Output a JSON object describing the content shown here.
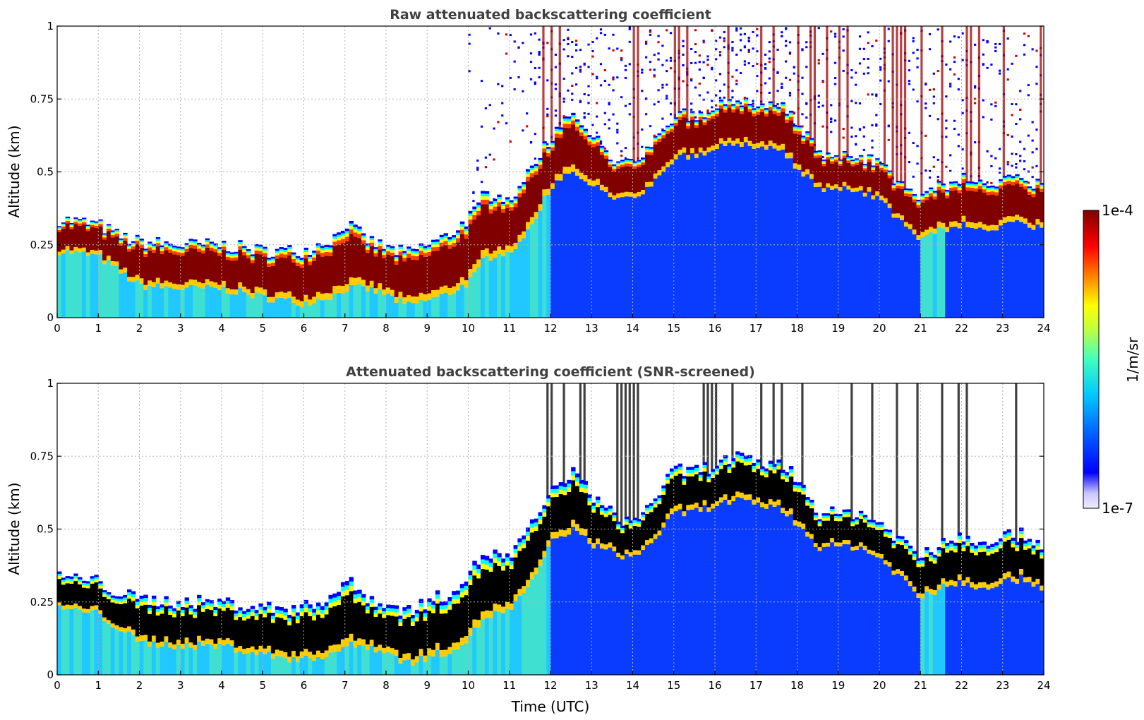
{
  "chart_data": [
    {
      "type": "heatmap",
      "title": "Raw attenuated backscattering coefficient",
      "xlabel": "",
      "ylabel": "Altitude (km)",
      "xlim": [
        0,
        24
      ],
      "ylim": [
        0,
        1
      ],
      "x_ticks": [
        "0",
        "1",
        "2",
        "3",
        "4",
        "5",
        "6",
        "7",
        "8",
        "9",
        "10",
        "11",
        "12",
        "13",
        "14",
        "15",
        "16",
        "17",
        "18",
        "19",
        "20",
        "21",
        "22",
        "23",
        "24"
      ],
      "y_ticks": [
        "0",
        "0.25",
        "0.5",
        "0.75",
        "1"
      ],
      "grid": true,
      "layer_top_km": [
        [
          0,
          0.34
        ],
        [
          0.5,
          0.33
        ],
        [
          1,
          0.32
        ],
        [
          1.5,
          0.28
        ],
        [
          2,
          0.26
        ],
        [
          3,
          0.25
        ],
        [
          4,
          0.25
        ],
        [
          5,
          0.23
        ],
        [
          6,
          0.23
        ],
        [
          6.8,
          0.28
        ],
        [
          7,
          0.33
        ],
        [
          7.5,
          0.27
        ],
        [
          8,
          0.24
        ],
        [
          8.5,
          0.22
        ],
        [
          9,
          0.25
        ],
        [
          9.5,
          0.28
        ],
        [
          10,
          0.34
        ],
        [
          10.4,
          0.42
        ],
        [
          11,
          0.4
        ],
        [
          11.5,
          0.5
        ],
        [
          12,
          0.62
        ],
        [
          12.5,
          0.7
        ],
        [
          13,
          0.62
        ],
        [
          13.5,
          0.55
        ],
        [
          14,
          0.52
        ],
        [
          14.5,
          0.6
        ],
        [
          15,
          0.7
        ],
        [
          15.5,
          0.7
        ],
        [
          16,
          0.72
        ],
        [
          16.5,
          0.75
        ],
        [
          17,
          0.72
        ],
        [
          17.5,
          0.73
        ],
        [
          18,
          0.68
        ],
        [
          18.5,
          0.56
        ],
        [
          19,
          0.55
        ],
        [
          19.5,
          0.56
        ],
        [
          20,
          0.52
        ],
        [
          20.5,
          0.47
        ],
        [
          21,
          0.4
        ],
        [
          21.5,
          0.45
        ],
        [
          22,
          0.48
        ],
        [
          22.5,
          0.46
        ],
        [
          23,
          0.48
        ],
        [
          23.5,
          0.48
        ],
        [
          24,
          0.45
        ]
      ],
      "layer_base_km": [
        [
          0,
          0.23
        ],
        [
          0.5,
          0.22
        ],
        [
          1,
          0.21
        ],
        [
          1.5,
          0.16
        ],
        [
          2,
          0.11
        ],
        [
          3,
          0.1
        ],
        [
          4,
          0.1
        ],
        [
          5,
          0.07
        ],
        [
          6,
          0.05
        ],
        [
          6.8,
          0.08
        ],
        [
          7,
          0.1
        ],
        [
          7.5,
          0.1
        ],
        [
          8,
          0.08
        ],
        [
          8.5,
          0.04
        ],
        [
          9,
          0.06
        ],
        [
          9.5,
          0.08
        ],
        [
          10,
          0.12
        ],
        [
          10.4,
          0.2
        ],
        [
          11,
          0.22
        ],
        [
          11.5,
          0.3
        ],
        [
          12,
          0.45
        ],
        [
          12.5,
          0.5
        ],
        [
          13,
          0.45
        ],
        [
          13.5,
          0.42
        ],
        [
          14,
          0.4
        ],
        [
          14.5,
          0.46
        ],
        [
          15,
          0.55
        ],
        [
          15.5,
          0.56
        ],
        [
          16,
          0.58
        ],
        [
          16.5,
          0.6
        ],
        [
          17,
          0.58
        ],
        [
          17.5,
          0.58
        ],
        [
          18,
          0.52
        ],
        [
          18.5,
          0.44
        ],
        [
          19,
          0.44
        ],
        [
          19.5,
          0.44
        ],
        [
          20,
          0.4
        ],
        [
          20.5,
          0.34
        ],
        [
          21,
          0.26
        ],
        [
          21.5,
          0.3
        ],
        [
          22,
          0.32
        ],
        [
          22.5,
          0.3
        ],
        [
          23,
          0.32
        ],
        [
          23.5,
          0.33
        ],
        [
          24,
          0.3
        ]
      ]
    },
    {
      "type": "heatmap",
      "title": "Attenuated backscattering coefficient (SNR-screened)",
      "xlabel": "Time (UTC)",
      "ylabel": "Altitude (km)",
      "xlim": [
        0,
        24
      ],
      "ylim": [
        0,
        1
      ],
      "x_ticks": [
        "0",
        "1",
        "2",
        "3",
        "4",
        "5",
        "6",
        "7",
        "8",
        "9",
        "10",
        "11",
        "12",
        "13",
        "14",
        "15",
        "16",
        "17",
        "18",
        "19",
        "20",
        "21",
        "22",
        "23",
        "24"
      ],
      "y_ticks": [
        "0",
        "0.25",
        "0.5",
        "0.75",
        "1"
      ],
      "grid": true
    }
  ],
  "colorbar": {
    "label": "1/m/sr",
    "max_label": "1e-4",
    "min_label": "1e-7",
    "scale": "log",
    "colormap": [
      "#eeeeff",
      "#c8c8ff",
      "#0000ff",
      "#0080ff",
      "#00c8ff",
      "#40ffc0",
      "#c0ff40",
      "#ffff00",
      "#ff8000",
      "#ff0000",
      "#800000"
    ],
    "screened_saturation_color": "#000000"
  }
}
